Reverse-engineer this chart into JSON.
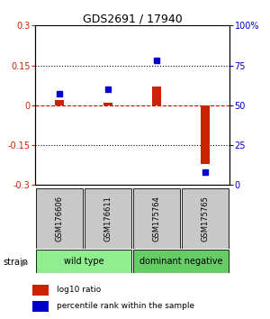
{
  "title": "GDS2691 / 17940",
  "samples": [
    "GSM176606",
    "GSM176611",
    "GSM175764",
    "GSM175765"
  ],
  "log10_ratio": [
    0.02,
    0.01,
    0.07,
    -0.22
  ],
  "percentile_rank": [
    57,
    60,
    78,
    8
  ],
  "ylim_left": [
    -0.3,
    0.3
  ],
  "ylim_right": [
    0,
    100
  ],
  "yticks_left": [
    -0.3,
    -0.15,
    0,
    0.15,
    0.3
  ],
  "yticks_right": [
    0,
    25,
    50,
    75,
    100
  ],
  "ytick_labels_left": [
    "-0.3",
    "-0.15",
    "0",
    "0.15",
    "0.3"
  ],
  "ytick_labels_right": [
    "0",
    "25",
    "50",
    "75",
    "100%"
  ],
  "hlines": [
    0.15,
    -0.15
  ],
  "zero_line": 0,
  "groups": [
    {
      "label": "wild type",
      "samples": [
        0,
        1
      ],
      "color": "#90ee90"
    },
    {
      "label": "dominant negative",
      "samples": [
        2,
        3
      ],
      "color": "#66cc66"
    }
  ],
  "strain_label": "strain",
  "bar_color_red": "#cc2200",
  "bar_color_blue": "#0000cc",
  "zero_line_color": "#cc0000",
  "legend_red_label": "log10 ratio",
  "legend_blue_label": "percentile rank within the sample",
  "bar_width": 0.18,
  "sample_box_color": "#c8c8c8",
  "fig_width": 3.0,
  "fig_height": 3.54
}
